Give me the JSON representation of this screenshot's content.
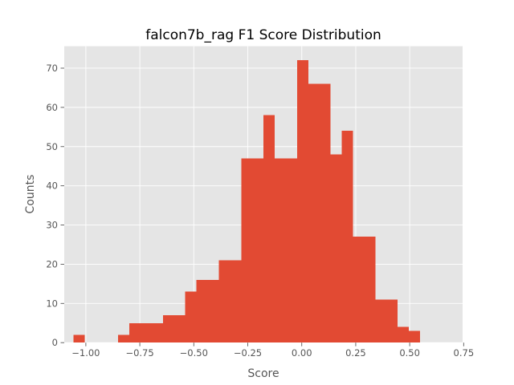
{
  "chart_data": {
    "type": "bar",
    "title": "falcon7b_rag F1 Score Distribution",
    "xlabel": "Score",
    "ylabel": "Counts",
    "xlim": [
      -1.1,
      0.745
    ],
    "ylim": [
      0,
      75.6
    ],
    "grid": true,
    "x_ticks": [
      -1.0,
      -0.75,
      -0.5,
      -0.25,
      0.0,
      0.25,
      0.5,
      0.75
    ],
    "x_tick_labels": [
      "−1.00",
      "−0.75",
      "−0.50",
      "−0.25",
      "0.00",
      "0.25",
      "0.50",
      "0.75"
    ],
    "y_ticks": [
      0,
      10,
      20,
      30,
      40,
      50,
      60,
      70
    ],
    "y_tick_labels": [
      "0",
      "10",
      "20",
      "30",
      "40",
      "50",
      "60",
      "70"
    ],
    "bar_color": "#E24A33",
    "bins": [
      {
        "start": -1.0576,
        "end": -1.0058,
        "count": 2
      },
      {
        "start": -1.0058,
        "end": -0.954,
        "count": 0
      },
      {
        "start": -0.954,
        "end": -0.9022,
        "count": 0
      },
      {
        "start": -0.9022,
        "end": -0.8504,
        "count": 0
      },
      {
        "start": -0.8504,
        "end": -0.7986,
        "count": 2
      },
      {
        "start": -0.7986,
        "end": -0.7468,
        "count": 5
      },
      {
        "start": -0.7468,
        "end": -0.695,
        "count": 5
      },
      {
        "start": -0.695,
        "end": -0.6432,
        "count": 5
      },
      {
        "start": -0.6432,
        "end": -0.5914,
        "count": 7
      },
      {
        "start": -0.5914,
        "end": -0.5396,
        "count": 7
      },
      {
        "start": -0.5396,
        "end": -0.4878,
        "count": 13
      },
      {
        "start": -0.4878,
        "end": -0.436,
        "count": 16
      },
      {
        "start": -0.436,
        "end": -0.3842,
        "count": 16
      },
      {
        "start": -0.3842,
        "end": -0.3324,
        "count": 21
      },
      {
        "start": -0.3324,
        "end": -0.2806,
        "count": 21
      },
      {
        "start": -0.2806,
        "end": -0.2288,
        "count": 47
      },
      {
        "start": -0.2288,
        "end": -0.177,
        "count": 47
      },
      {
        "start": -0.177,
        "end": -0.1252,
        "count": 58
      },
      {
        "start": -0.1252,
        "end": -0.0734,
        "count": 47
      },
      {
        "start": -0.0734,
        "end": -0.0216,
        "count": 47
      },
      {
        "start": -0.0216,
        "end": 0.0302,
        "count": 72
      },
      {
        "start": 0.0302,
        "end": 0.082,
        "count": 66
      },
      {
        "start": 0.082,
        "end": 0.1338,
        "count": 66
      },
      {
        "start": 0.1338,
        "end": 0.1856,
        "count": 48
      },
      {
        "start": 0.1856,
        "end": 0.2374,
        "count": 54
      },
      {
        "start": 0.2374,
        "end": 0.2892,
        "count": 27
      },
      {
        "start": 0.2892,
        "end": 0.341,
        "count": 27
      },
      {
        "start": 0.341,
        "end": 0.3928,
        "count": 11
      },
      {
        "start": 0.3928,
        "end": 0.4446,
        "count": 11
      },
      {
        "start": 0.4446,
        "end": 0.4964,
        "count": 4
      },
      {
        "start": 0.4964,
        "end": 0.5482,
        "count": 3
      }
    ]
  }
}
